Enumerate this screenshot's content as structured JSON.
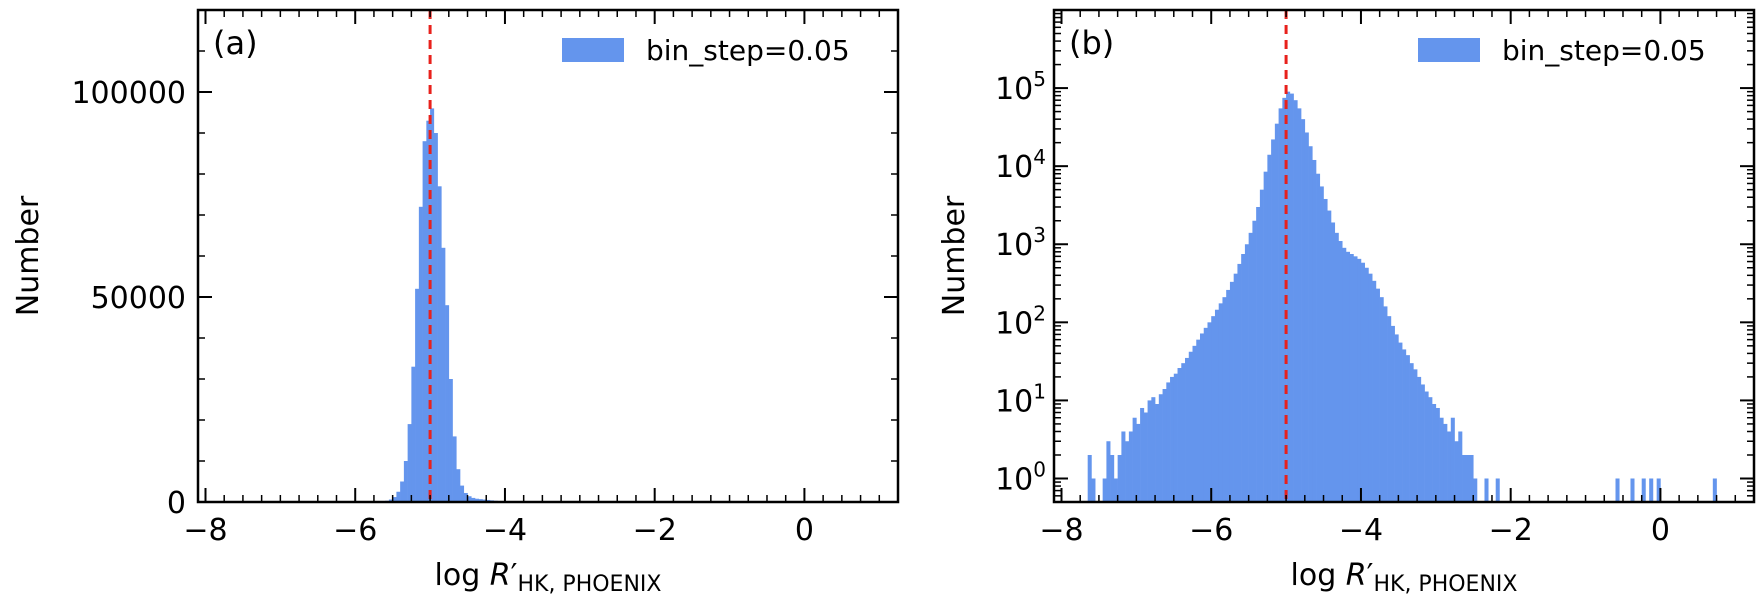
{
  "chart_data": [
    {
      "type": "bar",
      "panel_label": "(a)",
      "xlabel": "log R′HK, PHOENIX",
      "ylabel": "Number",
      "xlim": [
        -8.1,
        1.25
      ],
      "ylim": [
        0,
        120000
      ],
      "yscale": "linear",
      "xticks": [
        -8,
        -6,
        -4,
        -2,
        0
      ],
      "xtick_labels": [
        "−8",
        "−6",
        "−4",
        "−2",
        "0"
      ],
      "yticks": [
        0,
        50000,
        100000
      ],
      "ytick_labels": [
        "0",
        "50000",
        "100000"
      ],
      "bin_step": 0.05,
      "legend": {
        "label": "bin_step=0.05",
        "position": "upper-right"
      },
      "reference_line": {
        "x": -5.0,
        "color": "#e8211c",
        "style": "dashed"
      },
      "bar_color": "#6495ED",
      "series": [
        {
          "name": "bin_step=0.05",
          "bins": [
            {
              "x": -5.6,
              "count": 300
            },
            {
              "x": -5.55,
              "count": 600
            },
            {
              "x": -5.5,
              "count": 1200
            },
            {
              "x": -5.45,
              "count": 2500
            },
            {
              "x": -5.4,
              "count": 5000
            },
            {
              "x": -5.35,
              "count": 10000
            },
            {
              "x": -5.3,
              "count": 19000
            },
            {
              "x": -5.25,
              "count": 33000
            },
            {
              "x": -5.2,
              "count": 52000
            },
            {
              "x": -5.15,
              "count": 72000
            },
            {
              "x": -5.1,
              "count": 88000
            },
            {
              "x": -5.05,
              "count": 93000
            },
            {
              "x": -5.0,
              "count": 96000
            },
            {
              "x": -4.95,
              "count": 90000
            },
            {
              "x": -4.9,
              "count": 77000
            },
            {
              "x": -4.85,
              "count": 62000
            },
            {
              "x": -4.8,
              "count": 48000
            },
            {
              "x": -4.75,
              "count": 30000
            },
            {
              "x": -4.7,
              "count": 16000
            },
            {
              "x": -4.65,
              "count": 8000
            },
            {
              "x": -4.6,
              "count": 4000
            },
            {
              "x": -4.55,
              "count": 2200
            },
            {
              "x": -4.5,
              "count": 1400
            },
            {
              "x": -4.45,
              "count": 1000
            },
            {
              "x": -4.4,
              "count": 800
            },
            {
              "x": -4.35,
              "count": 700
            },
            {
              "x": -4.3,
              "count": 600
            },
            {
              "x": -4.25,
              "count": 500
            },
            {
              "x": -4.2,
              "count": 400
            },
            {
              "x": -4.15,
              "count": 300
            },
            {
              "x": -4.1,
              "count": 200
            },
            {
              "x": -4.05,
              "count": 120
            }
          ]
        }
      ]
    },
    {
      "type": "bar",
      "panel_label": "(b)",
      "xlabel": "log R′HK, PHOENIX",
      "ylabel": "Number",
      "xlim": [
        -8.1,
        1.25
      ],
      "ylim": [
        0.5,
        1000000
      ],
      "yscale": "log",
      "xticks": [
        -8,
        -6,
        -4,
        -2,
        0
      ],
      "xtick_labels": [
        "−8",
        "−6",
        "−4",
        "−2",
        "0"
      ],
      "yticks": [
        1,
        10,
        100,
        1000,
        10000,
        100000
      ],
      "ytick_labels": [
        "10",
        "10",
        "10",
        "10",
        "10",
        "10"
      ],
      "ytick_exponents": [
        "0",
        "1",
        "2",
        "3",
        "4",
        "5"
      ],
      "bin_step": 0.05,
      "legend": {
        "label": "bin_step=0.05",
        "position": "upper-right"
      },
      "reference_line": {
        "x": -5.0,
        "color": "#e8211c",
        "style": "dashed"
      },
      "bar_color": "#6495ED",
      "series": [
        {
          "name": "bin_step=0.05",
          "bins": [
            {
              "x": -7.65,
              "count": 2
            },
            {
              "x": -7.6,
              "count": 1
            },
            {
              "x": -7.45,
              "count": 1
            },
            {
              "x": -7.4,
              "count": 3
            },
            {
              "x": -7.35,
              "count": 2
            },
            {
              "x": -7.3,
              "count": 1
            },
            {
              "x": -7.25,
              "count": 2
            },
            {
              "x": -7.2,
              "count": 4
            },
            {
              "x": -7.15,
              "count": 3
            },
            {
              "x": -7.1,
              "count": 4
            },
            {
              "x": -7.05,
              "count": 6
            },
            {
              "x": -7.0,
              "count": 5
            },
            {
              "x": -6.95,
              "count": 8
            },
            {
              "x": -6.9,
              "count": 7
            },
            {
              "x": -6.85,
              "count": 10
            },
            {
              "x": -6.8,
              "count": 11
            },
            {
              "x": -6.75,
              "count": 9
            },
            {
              "x": -6.7,
              "count": 12
            },
            {
              "x": -6.65,
              "count": 14
            },
            {
              "x": -6.6,
              "count": 17
            },
            {
              "x": -6.55,
              "count": 20
            },
            {
              "x": -6.5,
              "count": 22
            },
            {
              "x": -6.45,
              "count": 26
            },
            {
              "x": -6.4,
              "count": 30
            },
            {
              "x": -6.35,
              "count": 35
            },
            {
              "x": -6.3,
              "count": 42
            },
            {
              "x": -6.25,
              "count": 50
            },
            {
              "x": -6.2,
              "count": 60
            },
            {
              "x": -6.15,
              "count": 72
            },
            {
              "x": -6.1,
              "count": 85
            },
            {
              "x": -6.05,
              "count": 100
            },
            {
              "x": -6.0,
              "count": 120
            },
            {
              "x": -5.95,
              "count": 145
            },
            {
              "x": -5.9,
              "count": 175
            },
            {
              "x": -5.85,
              "count": 210
            },
            {
              "x": -5.8,
              "count": 260
            },
            {
              "x": -5.75,
              "count": 330
            },
            {
              "x": -5.7,
              "count": 420
            },
            {
              "x": -5.65,
              "count": 560
            },
            {
              "x": -5.6,
              "count": 750
            },
            {
              "x": -5.55,
              "count": 1000
            },
            {
              "x": -5.5,
              "count": 1400
            },
            {
              "x": -5.45,
              "count": 2000
            },
            {
              "x": -5.4,
              "count": 3000
            },
            {
              "x": -5.35,
              "count": 5000
            },
            {
              "x": -5.3,
              "count": 8500
            },
            {
              "x": -5.25,
              "count": 14000
            },
            {
              "x": -5.2,
              "count": 22000
            },
            {
              "x": -5.15,
              "count": 35000
            },
            {
              "x": -5.1,
              "count": 55000
            },
            {
              "x": -5.05,
              "count": 75000
            },
            {
              "x": -5.0,
              "count": 90000
            },
            {
              "x": -4.95,
              "count": 85000
            },
            {
              "x": -4.9,
              "count": 70000
            },
            {
              "x": -4.85,
              "count": 55000
            },
            {
              "x": -4.8,
              "count": 40000
            },
            {
              "x": -4.75,
              "count": 27000
            },
            {
              "x": -4.7,
              "count": 18000
            },
            {
              "x": -4.65,
              "count": 12000
            },
            {
              "x": -4.6,
              "count": 8000
            },
            {
              "x": -4.55,
              "count": 5500
            },
            {
              "x": -4.5,
              "count": 3800
            },
            {
              "x": -4.45,
              "count": 2700
            },
            {
              "x": -4.4,
              "count": 1900
            },
            {
              "x": -4.35,
              "count": 1400
            },
            {
              "x": -4.3,
              "count": 1100
            },
            {
              "x": -4.25,
              "count": 900
            },
            {
              "x": -4.2,
              "count": 800
            },
            {
              "x": -4.15,
              "count": 750
            },
            {
              "x": -4.1,
              "count": 700
            },
            {
              "x": -4.05,
              "count": 650
            },
            {
              "x": -4.0,
              "count": 580
            },
            {
              "x": -3.95,
              "count": 500
            },
            {
              "x": -3.9,
              "count": 420
            },
            {
              "x": -3.85,
              "count": 340
            },
            {
              "x": -3.8,
              "count": 270
            },
            {
              "x": -3.75,
              "count": 210
            },
            {
              "x": -3.7,
              "count": 160
            },
            {
              "x": -3.65,
              "count": 120
            },
            {
              "x": -3.6,
              "count": 90
            },
            {
              "x": -3.55,
              "count": 70
            },
            {
              "x": -3.5,
              "count": 55
            },
            {
              "x": -3.45,
              "count": 45
            },
            {
              "x": -3.4,
              "count": 38
            },
            {
              "x": -3.35,
              "count": 30
            },
            {
              "x": -3.3,
              "count": 25
            },
            {
              "x": -3.25,
              "count": 20
            },
            {
              "x": -3.2,
              "count": 16
            },
            {
              "x": -3.15,
              "count": 13
            },
            {
              "x": -3.1,
              "count": 11
            },
            {
              "x": -3.05,
              "count": 9
            },
            {
              "x": -3.0,
              "count": 8
            },
            {
              "x": -2.95,
              "count": 6
            },
            {
              "x": -2.9,
              "count": 5
            },
            {
              "x": -2.85,
              "count": 4
            },
            {
              "x": -2.8,
              "count": 6
            },
            {
              "x": -2.75,
              "count": 3
            },
            {
              "x": -2.7,
              "count": 4
            },
            {
              "x": -2.65,
              "count": 2
            },
            {
              "x": -2.6,
              "count": 2
            },
            {
              "x": -2.55,
              "count": 2
            },
            {
              "x": -2.5,
              "count": 1
            },
            {
              "x": -2.35,
              "count": 1
            },
            {
              "x": -2.2,
              "count": 1
            },
            {
              "x": -0.6,
              "count": 1
            },
            {
              "x": -0.4,
              "count": 1
            },
            {
              "x": -0.25,
              "count": 1
            },
            {
              "x": -0.15,
              "count": 1
            },
            {
              "x": -0.05,
              "count": 1
            },
            {
              "x": 0.7,
              "count": 1
            }
          ]
        }
      ]
    }
  ]
}
